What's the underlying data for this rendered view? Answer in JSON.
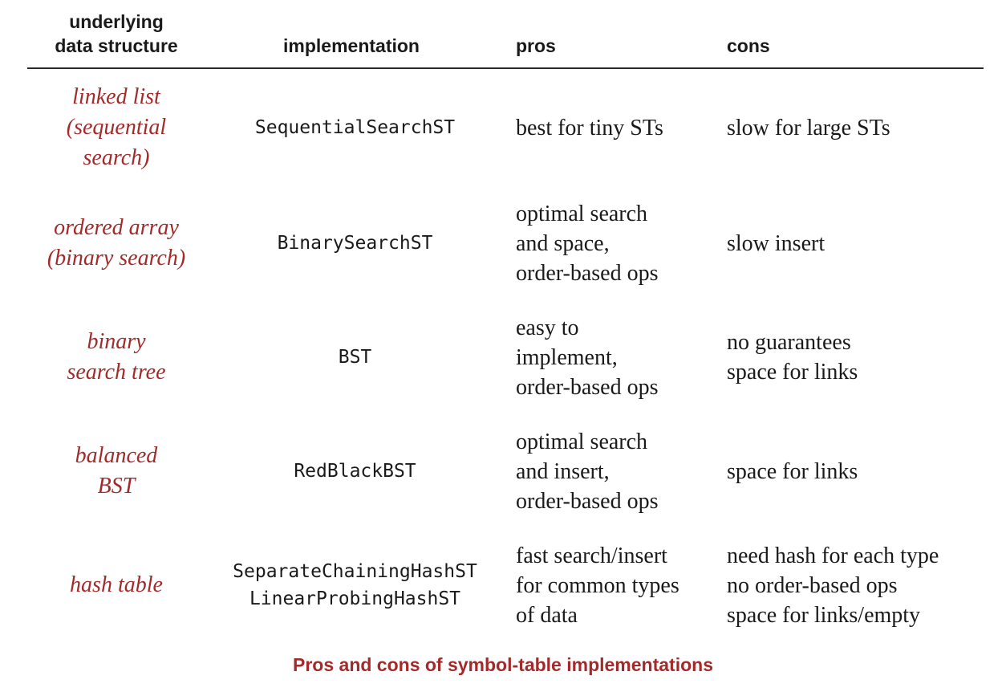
{
  "header": {
    "col1": "underlying\ndata structure",
    "col2": "implementation",
    "col3": "pros",
    "col4": "cons"
  },
  "rows": [
    {
      "structure": "linked list\n(sequential\nsearch)",
      "implementation": "SequentialSearchST",
      "pros": "best for tiny STs",
      "cons": "slow for large STs"
    },
    {
      "structure": "ordered array\n(binary search)",
      "implementation": "BinarySearchST",
      "pros": "optimal search\nand space,\norder-based ops",
      "cons": "slow insert"
    },
    {
      "structure": "binary\nsearch tree",
      "implementation": "BST",
      "pros": "easy to\nimplement,\norder-based ops",
      "cons": "no guarantees\nspace for links"
    },
    {
      "structure": "balanced\nBST",
      "implementation": "RedBlackBST",
      "pros": "optimal search\nand insert,\norder-based ops",
      "cons": "space for links"
    },
    {
      "structure": "hash table",
      "implementation": "SeparateChainingHashST\nLinearProbingHashST",
      "pros": "fast search/insert\nfor common types\nof data",
      "cons": "need hash for each type\nno order-based ops\nspace for links/empty"
    }
  ],
  "caption": "Pros and cons of symbol-table implementations",
  "colors": {
    "accent": "#a32a2a",
    "text": "#1a1a1a"
  }
}
